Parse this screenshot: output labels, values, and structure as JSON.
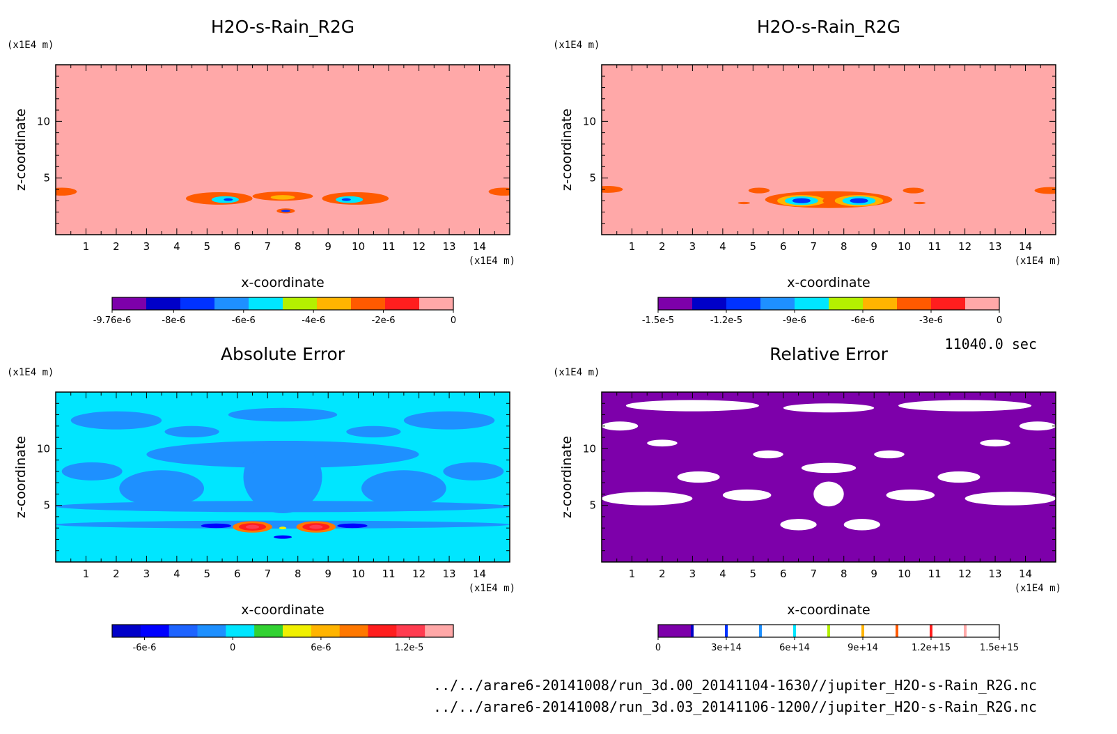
{
  "chart_data": [
    {
      "type": "heatmap",
      "title": "H2O-s-Rain_R2G",
      "xlabel": "x-coordinate",
      "ylabel": "z-coordinate",
      "xunit": "(x1E4 m)",
      "yunit": "(x1E4 m)",
      "xlim": [
        0,
        15
      ],
      "ylim": [
        0,
        15
      ],
      "xticks": [
        "1",
        "2",
        "3",
        "4",
        "5",
        "6",
        "7",
        "8",
        "9",
        "10",
        "11",
        "12",
        "13",
        "14"
      ],
      "yticks": [
        "5",
        "10"
      ],
      "background": "#ffa8a8",
      "colorbar": {
        "colors": [
          "#7d00aa",
          "#0000c8",
          "#0032ff",
          "#1e90ff",
          "#00e6ff",
          "#b4f000",
          "#ffb400",
          "#ff5a00",
          "#ff1e1e",
          "#ffa8a8"
        ],
        "ticks": [
          {
            "label": "-9.76e-6",
            "value": -9.76e-06
          },
          {
            "label": "-8e-6",
            "value": -8e-06
          },
          {
            "label": "-6e-6",
            "value": -6e-06
          },
          {
            "label": "-4e-6",
            "value": -4e-06
          },
          {
            "label": "-2e-6",
            "value": -2e-06
          },
          {
            "label": "0",
            "value": 0
          }
        ],
        "min": -9.76e-06,
        "max": 0
      },
      "features": [
        {
          "x": 0.2,
          "z": 3.8,
          "rx": 0.5,
          "rz": 0.35,
          "level": 7
        },
        {
          "x": 14.8,
          "z": 3.8,
          "rx": 0.5,
          "rz": 0.35,
          "level": 7
        },
        {
          "x": 5.4,
          "z": 3.2,
          "rx": 1.1,
          "rz": 0.55,
          "level": 7
        },
        {
          "x": 5.6,
          "z": 3.1,
          "rx": 0.45,
          "rz": 0.3,
          "level": 4
        },
        {
          "x": 5.7,
          "z": 3.1,
          "rx": 0.15,
          "rz": 0.12,
          "level": 2
        },
        {
          "x": 9.9,
          "z": 3.2,
          "rx": 1.1,
          "rz": 0.55,
          "level": 7
        },
        {
          "x": 9.7,
          "z": 3.1,
          "rx": 0.45,
          "rz": 0.3,
          "level": 4
        },
        {
          "x": 9.6,
          "z": 3.1,
          "rx": 0.15,
          "rz": 0.12,
          "level": 2
        },
        {
          "x": 7.5,
          "z": 3.4,
          "rx": 1.0,
          "rz": 0.4,
          "level": 7
        },
        {
          "x": 7.5,
          "z": 3.3,
          "rx": 0.4,
          "rz": 0.2,
          "level": 6
        },
        {
          "x": 7.6,
          "z": 2.1,
          "rx": 0.3,
          "rz": 0.22,
          "level": 7
        },
        {
          "x": 7.6,
          "z": 2.1,
          "rx": 0.15,
          "rz": 0.1,
          "level": 2
        }
      ]
    },
    {
      "type": "heatmap",
      "title": "H2O-s-Rain_R2G",
      "xlabel": "x-coordinate",
      "ylabel": "z-coordinate",
      "xunit": "(x1E4 m)",
      "yunit": "(x1E4 m)",
      "xlim": [
        0,
        15
      ],
      "ylim": [
        0,
        15
      ],
      "xticks": [
        "1",
        "2",
        "3",
        "4",
        "5",
        "6",
        "7",
        "8",
        "9",
        "10",
        "11",
        "12",
        "13",
        "14"
      ],
      "yticks": [
        "5",
        "10"
      ],
      "background": "#ffa8a8",
      "colorbar": {
        "colors": [
          "#7d00aa",
          "#0000c8",
          "#0032ff",
          "#1e90ff",
          "#00e6ff",
          "#b4f000",
          "#ffb400",
          "#ff5a00",
          "#ff1e1e",
          "#ffa8a8"
        ],
        "ticks": [
          {
            "label": "-1.5e-5",
            "value": -1.5e-05
          },
          {
            "label": "-1.2e-5",
            "value": -1.2e-05
          },
          {
            "label": "-9e-6",
            "value": -9e-06
          },
          {
            "label": "-6e-6",
            "value": -6e-06
          },
          {
            "label": "-3e-6",
            "value": -3e-06
          },
          {
            "label": "0",
            "value": 0
          }
        ],
        "min": -1.5e-05,
        "max": 0
      },
      "features": [
        {
          "x": 0.2,
          "z": 4.0,
          "rx": 0.5,
          "rz": 0.3,
          "level": 7
        },
        {
          "x": 14.8,
          "z": 3.9,
          "rx": 0.5,
          "rz": 0.3,
          "level": 7
        },
        {
          "x": 5.2,
          "z": 3.9,
          "rx": 0.35,
          "rz": 0.25,
          "level": 7
        },
        {
          "x": 10.3,
          "z": 3.9,
          "rx": 0.35,
          "rz": 0.25,
          "level": 7
        },
        {
          "x": 7.5,
          "z": 3.1,
          "rx": 2.1,
          "rz": 0.75,
          "level": 7
        },
        {
          "x": 6.6,
          "z": 3.0,
          "rx": 0.8,
          "rz": 0.5,
          "level": 6
        },
        {
          "x": 6.6,
          "z": 3.0,
          "rx": 0.55,
          "rz": 0.38,
          "level": 4
        },
        {
          "x": 6.6,
          "z": 3.0,
          "rx": 0.3,
          "rz": 0.22,
          "level": 2
        },
        {
          "x": 8.5,
          "z": 3.0,
          "rx": 0.8,
          "rz": 0.5,
          "level": 6
        },
        {
          "x": 8.5,
          "z": 3.0,
          "rx": 0.55,
          "rz": 0.38,
          "level": 4
        },
        {
          "x": 8.5,
          "z": 3.0,
          "rx": 0.3,
          "rz": 0.22,
          "level": 2
        },
        {
          "x": 7.5,
          "z": 3.0,
          "rx": 0.2,
          "rz": 0.25,
          "level": 7
        },
        {
          "x": 4.7,
          "z": 2.8,
          "rx": 0.2,
          "rz": 0.1,
          "level": 7
        },
        {
          "x": 10.5,
          "z": 2.8,
          "rx": 0.2,
          "rz": 0.1,
          "level": 7
        }
      ]
    },
    {
      "type": "heatmap",
      "title": "Absolute Error",
      "xlabel": "x-coordinate",
      "ylabel": "z-coordinate",
      "xunit": "(x1E4 m)",
      "yunit": "(x1E4 m)",
      "xlim": [
        0,
        15
      ],
      "ylim": [
        0,
        15
      ],
      "xticks": [
        "1",
        "2",
        "3",
        "4",
        "5",
        "6",
        "7",
        "8",
        "9",
        "10",
        "11",
        "12",
        "13",
        "14"
      ],
      "yticks": [
        "5",
        "10"
      ],
      "background": "#00e6ff",
      "colorbar": {
        "colors": [
          "#0000c8",
          "#0000ff",
          "#1e64ff",
          "#1e90ff",
          "#00e6ff",
          "#32d232",
          "#f0f000",
          "#ffb400",
          "#ff7800",
          "#ff1e1e",
          "#ff3c50",
          "#ffa8a8"
        ],
        "ticks": [
          {
            "label": "-6e-6",
            "value": -6e-06
          },
          {
            "label": "0",
            "value": 0
          },
          {
            "label": "6e-6",
            "value": 6e-06
          },
          {
            "label": "1.2e-5",
            "value": 1.2e-05
          }
        ],
        "min": -8.2e-06,
        "max": 1.5e-05
      },
      "features": [
        {
          "x": 7.5,
          "z": 9.5,
          "rx": 4.5,
          "rz": 1.2,
          "level": 3
        },
        {
          "x": 7.5,
          "z": 7.5,
          "rx": 1.3,
          "rz": 3.2,
          "level": 3
        },
        {
          "x": 3.5,
          "z": 6.5,
          "rx": 1.4,
          "rz": 1.6,
          "level": 3
        },
        {
          "x": 11.5,
          "z": 6.5,
          "rx": 1.4,
          "rz": 1.6,
          "level": 3
        },
        {
          "x": 2.0,
          "z": 12.5,
          "rx": 1.5,
          "rz": 0.8,
          "level": 3
        },
        {
          "x": 13.0,
          "z": 12.5,
          "rx": 1.5,
          "rz": 0.8,
          "level": 3
        },
        {
          "x": 7.5,
          "z": 13.0,
          "rx": 1.8,
          "rz": 0.6,
          "level": 3
        },
        {
          "x": 4.5,
          "z": 11.5,
          "rx": 0.9,
          "rz": 0.5,
          "level": 3
        },
        {
          "x": 10.5,
          "z": 11.5,
          "rx": 0.9,
          "rz": 0.5,
          "level": 3
        },
        {
          "x": 7.5,
          "z": 4.9,
          "rx": 7.5,
          "rz": 0.5,
          "level": 3
        },
        {
          "x": 7.5,
          "z": 3.3,
          "rx": 7.5,
          "rz": 0.35,
          "level": 3
        },
        {
          "x": 1.2,
          "z": 8.0,
          "rx": 1.0,
          "rz": 0.8,
          "level": 3
        },
        {
          "x": 13.8,
          "z": 8.0,
          "rx": 1.0,
          "rz": 0.8,
          "level": 3
        },
        {
          "x": 5.3,
          "z": 3.2,
          "rx": 0.5,
          "rz": 0.2,
          "level": 1
        },
        {
          "x": 9.8,
          "z": 3.2,
          "rx": 0.5,
          "rz": 0.2,
          "level": 1
        },
        {
          "x": 6.5,
          "z": 3.1,
          "rx": 0.65,
          "rz": 0.5,
          "level": 8
        },
        {
          "x": 6.5,
          "z": 3.1,
          "rx": 0.45,
          "rz": 0.33,
          "level": 9
        },
        {
          "x": 6.5,
          "z": 3.1,
          "rx": 0.22,
          "rz": 0.18,
          "level": 10
        },
        {
          "x": 8.6,
          "z": 3.1,
          "rx": 0.65,
          "rz": 0.5,
          "level": 8
        },
        {
          "x": 8.6,
          "z": 3.1,
          "rx": 0.45,
          "rz": 0.33,
          "level": 9
        },
        {
          "x": 8.6,
          "z": 3.1,
          "rx": 0.22,
          "rz": 0.18,
          "level": 10
        },
        {
          "x": 7.5,
          "z": 2.2,
          "rx": 0.3,
          "rz": 0.15,
          "level": 1
        },
        {
          "x": 7.5,
          "z": 3.0,
          "rx": 0.12,
          "rz": 0.12,
          "level": 6
        }
      ]
    },
    {
      "type": "heatmap",
      "title": "Relative Error",
      "xlabel": "x-coordinate",
      "ylabel": "z-coordinate",
      "xunit": "(x1E4 m)",
      "yunit": "(x1E4 m)",
      "xlim": [
        0,
        15
      ],
      "ylim": [
        0,
        15
      ],
      "xticks": [
        "1",
        "2",
        "3",
        "4",
        "5",
        "6",
        "7",
        "8",
        "9",
        "10",
        "11",
        "12",
        "13",
        "14"
      ],
      "yticks": [
        "5",
        "10"
      ],
      "background": "#7d00aa",
      "colorbar": {
        "colors": [
          "#7d00aa",
          "#ffffff",
          "#ffffff",
          "#ffffff",
          "#ffffff",
          "#ffffff",
          "#ffffff",
          "#ffffff",
          "#ffffff",
          "#ffffff"
        ],
        "separators": [
          "#0000c8",
          "#0032ff",
          "#1e90ff",
          "#00e6ff",
          "#b4f000",
          "#ffb400",
          "#ff5a00",
          "#ff1e1e",
          "#ffa8a8"
        ],
        "ticks": [
          {
            "label": "0",
            "value": 0
          },
          {
            "label": "3e+14",
            "value": 300000000000000.0
          },
          {
            "label": "6e+14",
            "value": 600000000000000.0
          },
          {
            "label": "9e+14",
            "value": 900000000000000.0
          },
          {
            "label": "1.2e+15",
            "value": 1200000000000000.0
          },
          {
            "label": "1.5e+15",
            "value": 1500000000000000.0
          }
        ],
        "min": 0,
        "max": 1500000000000000.0
      },
      "features": [
        {
          "x": 3.0,
          "z": 13.8,
          "rx": 2.2,
          "rz": 0.5,
          "level": -1
        },
        {
          "x": 12.0,
          "z": 13.8,
          "rx": 2.2,
          "rz": 0.5,
          "level": -1
        },
        {
          "x": 7.5,
          "z": 13.6,
          "rx": 1.5,
          "rz": 0.4,
          "level": -1
        },
        {
          "x": 0.6,
          "z": 12.0,
          "rx": 0.6,
          "rz": 0.4,
          "level": -1
        },
        {
          "x": 14.4,
          "z": 12.0,
          "rx": 0.6,
          "rz": 0.4,
          "level": -1
        },
        {
          "x": 7.5,
          "z": 8.3,
          "rx": 0.9,
          "rz": 0.45,
          "level": -1
        },
        {
          "x": 7.5,
          "z": 6.0,
          "rx": 0.5,
          "rz": 1.1,
          "level": -1
        },
        {
          "x": 3.2,
          "z": 7.5,
          "rx": 0.7,
          "rz": 0.5,
          "level": -1
        },
        {
          "x": 11.8,
          "z": 7.5,
          "rx": 0.7,
          "rz": 0.5,
          "level": -1
        },
        {
          "x": 1.5,
          "z": 5.6,
          "rx": 1.5,
          "rz": 0.6,
          "level": -1
        },
        {
          "x": 13.5,
          "z": 5.6,
          "rx": 1.5,
          "rz": 0.6,
          "level": -1
        },
        {
          "x": 4.8,
          "z": 5.9,
          "rx": 0.8,
          "rz": 0.5,
          "level": -1
        },
        {
          "x": 10.2,
          "z": 5.9,
          "rx": 0.8,
          "rz": 0.5,
          "level": -1
        },
        {
          "x": 5.5,
          "z": 9.5,
          "rx": 0.5,
          "rz": 0.35,
          "level": -1
        },
        {
          "x": 9.5,
          "z": 9.5,
          "rx": 0.5,
          "rz": 0.35,
          "level": -1
        },
        {
          "x": 2.0,
          "z": 10.5,
          "rx": 0.5,
          "rz": 0.3,
          "level": -1
        },
        {
          "x": 13.0,
          "z": 10.5,
          "rx": 0.5,
          "rz": 0.3,
          "level": -1
        },
        {
          "x": 6.5,
          "z": 3.3,
          "rx": 0.6,
          "rz": 0.5,
          "level": -1
        },
        {
          "x": 8.6,
          "z": 3.3,
          "rx": 0.6,
          "rz": 0.5,
          "level": -1
        },
        {
          "x": 6.4,
          "z": 3.2,
          "rx": 0.15,
          "rz": 0.12,
          "level": 2
        },
        {
          "x": 8.6,
          "z": 3.2,
          "rx": 0.15,
          "rz": 0.12,
          "level": 2
        }
      ]
    }
  ],
  "time_label": "11040.0 sec",
  "file_paths": [
    "../../arare6-20141008/run_3d.00_20141104-1630//jupiter_H2O-s-Rain_R2G.nc",
    "../../arare6-20141008/run_3d.03_20141106-1200//jupiter_H2O-s-Rain_R2G.nc"
  ]
}
